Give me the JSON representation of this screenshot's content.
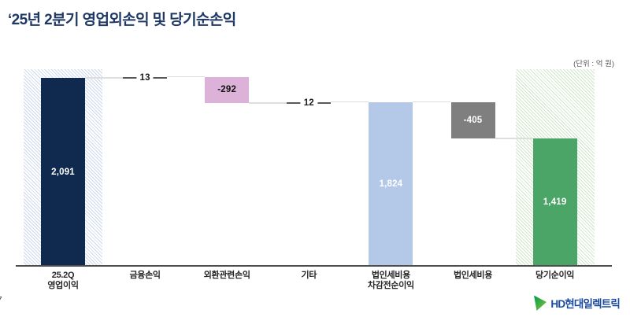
{
  "page": {
    "title": "‘25년 2분기 영업외손익 및 당기순손익",
    "unit_label": "(단위 : 억 원)",
    "page_number": "7",
    "logo_text": "HD현대일렉트릭"
  },
  "colors": {
    "title": "#1f3864",
    "axis": "#4d4d4d",
    "connector": "#dedede",
    "logo_text": "#1a4a9d",
    "logo_green_dark": "#009a49",
    "logo_green_light": "#86c440"
  },
  "chart_data": {
    "type": "bar",
    "subtype": "waterfall",
    "title": "‘25년 2분기 영업외손익 및 당기순손익",
    "unit": "억 원",
    "xlabel": "",
    "ylabel": "",
    "ylim": [
      0,
      2190
    ],
    "grid": false,
    "legend": "none",
    "categories": [
      "25.2Q\n영업이익",
      "금융손익",
      "외환관련손익",
      "기타",
      "법인세비용\n차감전순이익",
      "법인세비용",
      "당기순이익"
    ],
    "steps": [
      {
        "name": "operating-profit-bar",
        "label": "25.2Q 영업이익",
        "kind": "total",
        "value": 2091,
        "display": "2,091",
        "color": "#10294f",
        "label_color": "#ffffff",
        "band": "#ccd9ec"
      },
      {
        "name": "financial-income-bar",
        "label": "금융손익",
        "kind": "delta",
        "value": 13,
        "display": "13",
        "color": "#595959",
        "label_color": "#1a1a1a"
      },
      {
        "name": "fx-income-bar",
        "label": "외환관련손익",
        "kind": "delta",
        "value": -292,
        "display": "-292",
        "color": "#dcb2d8",
        "label_color": "#111111"
      },
      {
        "name": "other-income-bar",
        "label": "기타",
        "kind": "delta",
        "value": 12,
        "display": "12",
        "color": "#595959",
        "label_color": "#1a1a1a"
      },
      {
        "name": "pretax-income-bar",
        "label": "법인세비용 차감전순이익",
        "kind": "total",
        "value": 1824,
        "display": "1,824",
        "color": "#b4c8e8",
        "label_color": "#ffffff"
      },
      {
        "name": "tax-expense-bar",
        "label": "법인세비용",
        "kind": "delta",
        "value": -405,
        "display": "-405",
        "color": "#7f7f7f",
        "label_color": "#ffffff"
      },
      {
        "name": "net-income-bar",
        "label": "당기순이익",
        "kind": "total",
        "value": 1419,
        "display": "1,419",
        "color": "#4ba566",
        "label_color": "#ffffff",
        "band": "#cfe5ca"
      }
    ]
  }
}
